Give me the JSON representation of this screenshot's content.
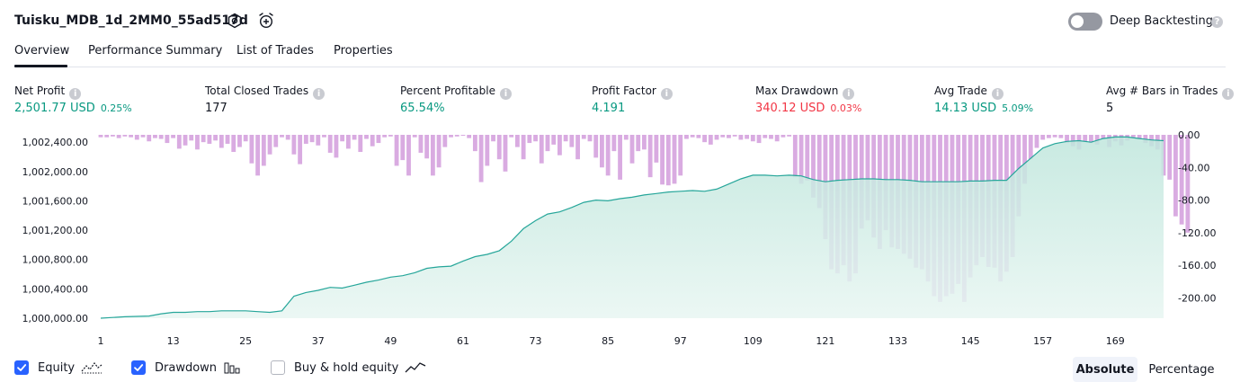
{
  "header": {
    "title": "Tuisku_MDB_1d_2MM0_55ad517d",
    "icons": [
      "settings-icon",
      "add-alert-icon"
    ],
    "deep_backtesting": {
      "label": "Deep Backtesting",
      "enabled": false,
      "help": "?"
    }
  },
  "tabs": [
    {
      "label": "Overview",
      "active": true
    },
    {
      "label": "Performance Summary",
      "active": false
    },
    {
      "label": "List of Trades",
      "active": false
    },
    {
      "label": "Properties",
      "active": false
    }
  ],
  "metrics": [
    {
      "label": "Net Profit",
      "value": "2,501.77 USD",
      "pct": "0.25%",
      "color": "#089981"
    },
    {
      "label": "Total Closed Trades",
      "value": "177",
      "pct": "",
      "color": "#131722"
    },
    {
      "label": "Percent Profitable",
      "value": "65.54%",
      "pct": "",
      "color": "#089981"
    },
    {
      "label": "Profit Factor",
      "value": "4.191",
      "pct": "",
      "color": "#089981"
    },
    {
      "label": "Max Drawdown",
      "value": "340.12 USD",
      "pct": "0.03%",
      "color": "#f23645"
    },
    {
      "label": "Avg Trade",
      "value": "14.13 USD",
      "pct": "5.09%",
      "color": "#089981"
    },
    {
      "label": "Avg # Bars in Trades",
      "value": "5",
      "pct": "",
      "color": "#131722"
    }
  ],
  "chart_data": {
    "type": "area",
    "left_axis_ticks": [
      "1,002,400.00",
      "1,002,000.00",
      "1,001,600.00",
      "1,001,200.00",
      "1,000,800.00",
      "1,000,400.00",
      "1,000,000.00"
    ],
    "left_axis_range": [
      1000000,
      1002500
    ],
    "right_axis_ticks": [
      "0.00",
      "-40.00",
      "-80.00",
      "-120.00",
      "-160.00",
      "-200.00"
    ],
    "right_axis_range": [
      -225,
      0
    ],
    "x_ticks": [
      "1",
      "13",
      "25",
      "37",
      "49",
      "61",
      "73",
      "85",
      "97",
      "109",
      "121",
      "133",
      "145",
      "157",
      "169"
    ],
    "x_range": [
      1,
      177
    ],
    "series": [
      {
        "name": "Equity",
        "color": "#089981",
        "points": [
          [
            1,
            1000000
          ],
          [
            3,
            1000010
          ],
          [
            5,
            1000020
          ],
          [
            7,
            1000025
          ],
          [
            9,
            1000030
          ],
          [
            11,
            1000060
          ],
          [
            13,
            1000080
          ],
          [
            15,
            1000080
          ],
          [
            17,
            1000090
          ],
          [
            19,
            1000090
          ],
          [
            21,
            1000100
          ],
          [
            23,
            1000100
          ],
          [
            25,
            1000100
          ],
          [
            27,
            1000090
          ],
          [
            29,
            1000080
          ],
          [
            31,
            1000100
          ],
          [
            33,
            1000300
          ],
          [
            35,
            1000350
          ],
          [
            37,
            1000380
          ],
          [
            39,
            1000420
          ],
          [
            41,
            1000410
          ],
          [
            43,
            1000450
          ],
          [
            45,
            1000490
          ],
          [
            47,
            1000520
          ],
          [
            49,
            1000560
          ],
          [
            51,
            1000580
          ],
          [
            53,
            1000620
          ],
          [
            55,
            1000680
          ],
          [
            57,
            1000700
          ],
          [
            59,
            1000710
          ],
          [
            61,
            1000780
          ],
          [
            63,
            1000840
          ],
          [
            65,
            1000870
          ],
          [
            67,
            1000920
          ],
          [
            69,
            1001050
          ],
          [
            71,
            1001220
          ],
          [
            73,
            1001330
          ],
          [
            75,
            1001420
          ],
          [
            77,
            1001450
          ],
          [
            79,
            1001510
          ],
          [
            81,
            1001580
          ],
          [
            83,
            1001610
          ],
          [
            85,
            1001600
          ],
          [
            87,
            1001630
          ],
          [
            89,
            1001650
          ],
          [
            91,
            1001680
          ],
          [
            93,
            1001700
          ],
          [
            95,
            1001720
          ],
          [
            97,
            1001730
          ],
          [
            99,
            1001740
          ],
          [
            101,
            1001730
          ],
          [
            103,
            1001760
          ],
          [
            105,
            1001830
          ],
          [
            107,
            1001900
          ],
          [
            109,
            1001950
          ],
          [
            111,
            1001950
          ],
          [
            113,
            1001940
          ],
          [
            115,
            1001950
          ],
          [
            117,
            1001940
          ],
          [
            119,
            1001890
          ],
          [
            121,
            1001860
          ],
          [
            123,
            1001880
          ],
          [
            125,
            1001890
          ],
          [
            127,
            1001900
          ],
          [
            129,
            1001900
          ],
          [
            131,
            1001890
          ],
          [
            133,
            1001890
          ],
          [
            135,
            1001880
          ],
          [
            137,
            1001860
          ],
          [
            139,
            1001860
          ],
          [
            141,
            1001860
          ],
          [
            143,
            1001860
          ],
          [
            145,
            1001870
          ],
          [
            147,
            1001870
          ],
          [
            149,
            1001880
          ],
          [
            151,
            1001880
          ],
          [
            153,
            1002040
          ],
          [
            155,
            1002180
          ],
          [
            157,
            1002320
          ],
          [
            159,
            1002380
          ],
          [
            161,
            1002410
          ],
          [
            163,
            1002420
          ],
          [
            165,
            1002400
          ],
          [
            167,
            1002450
          ],
          [
            169,
            1002470
          ],
          [
            171,
            1002470
          ],
          [
            173,
            1002450
          ],
          [
            175,
            1002430
          ],
          [
            177,
            1002420
          ]
        ]
      },
      {
        "name": "Drawdown",
        "color": "#ce93d8",
        "values": [
          -3,
          -3,
          -2,
          -4,
          -2,
          -3,
          -6,
          -3,
          -8,
          -4,
          -5,
          -10,
          -4,
          -17,
          -13,
          -7,
          -18,
          -9,
          -11,
          -7,
          -16,
          -11,
          -21,
          -15,
          -8,
          -35,
          -50,
          -38,
          -24,
          -15,
          -3,
          -6,
          -24,
          -36,
          -11,
          -9,
          -13,
          -3,
          -22,
          -28,
          -8,
          -17,
          -6,
          -21,
          -5,
          -14,
          -10,
          -3,
          -2,
          -38,
          -31,
          -50,
          -3,
          -22,
          -29,
          -50,
          -40,
          -15,
          -3,
          -2,
          -1,
          -4,
          -20,
          -58,
          -38,
          -8,
          -30,
          -45,
          -3,
          -15,
          -30,
          -10,
          -8,
          -35,
          -20,
          -12,
          -25,
          -8,
          -15,
          -30,
          -5,
          -8,
          -28,
          -40,
          -50,
          -20,
          -55,
          -6,
          -35,
          -20,
          -18,
          -52,
          -34,
          -61,
          -62,
          -60,
          -50,
          -5,
          -3,
          -4,
          -9,
          -12,
          -6,
          -3,
          -4,
          -2,
          -6,
          -5,
          -8,
          -10,
          -4,
          -5,
          -8,
          -3,
          -2,
          -52,
          -60,
          -56,
          -77,
          -90,
          -128,
          -165,
          -170,
          -160,
          -180,
          -170,
          -115,
          -105,
          -126,
          -140,
          -117,
          -138,
          -140,
          -146,
          -152,
          -163,
          -165,
          -180,
          -198,
          -205,
          -198,
          -195,
          -183,
          -205,
          -175,
          -160,
          -150,
          -162,
          -163,
          -180,
          -168,
          -150,
          -100,
          -60,
          -30,
          -16,
          -6,
          -4,
          -3,
          -4,
          -10,
          -14,
          -18,
          -8,
          -10,
          -12,
          -5,
          -15,
          -8,
          -13,
          -7,
          -3,
          -5,
          -10,
          -14,
          -18,
          -50,
          -55,
          -100,
          -110,
          -120
        ]
      }
    ]
  },
  "legend": {
    "equity": {
      "label": "Equity",
      "checked": true
    },
    "drawdown": {
      "label": "Drawdown",
      "checked": true
    },
    "buy_hold": {
      "label": "Buy & hold equity",
      "checked": false
    }
  },
  "view_buttons": {
    "absolute": "Absolute",
    "percentage": "Percentage",
    "active": "Absolute"
  }
}
